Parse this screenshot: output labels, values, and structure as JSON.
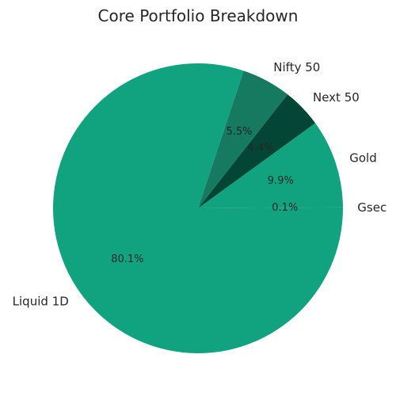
{
  "chart_data": {
    "type": "pie",
    "title": "Core Portfolio Breakdown",
    "slices": [
      {
        "label": "Gsec",
        "value": 0.1,
        "pct_text": "0.1%",
        "color": "#11A37F"
      },
      {
        "label": "Gold",
        "value": 9.9,
        "pct_text": "9.9%",
        "color": "#11A37F"
      },
      {
        "label": "Next 50",
        "value": 4.4,
        "pct_text": "4.4%",
        "color": "#034636"
      },
      {
        "label": "Nifty 50",
        "value": 5.5,
        "pct_text": "5.5%",
        "color": "#167A61"
      },
      {
        "label": "Liquid 1D",
        "value": 80.1,
        "pct_text": "80.1%",
        "color": "#11A37F"
      }
    ],
    "start_angle_deg": 0,
    "direction": "counterclockwise"
  }
}
